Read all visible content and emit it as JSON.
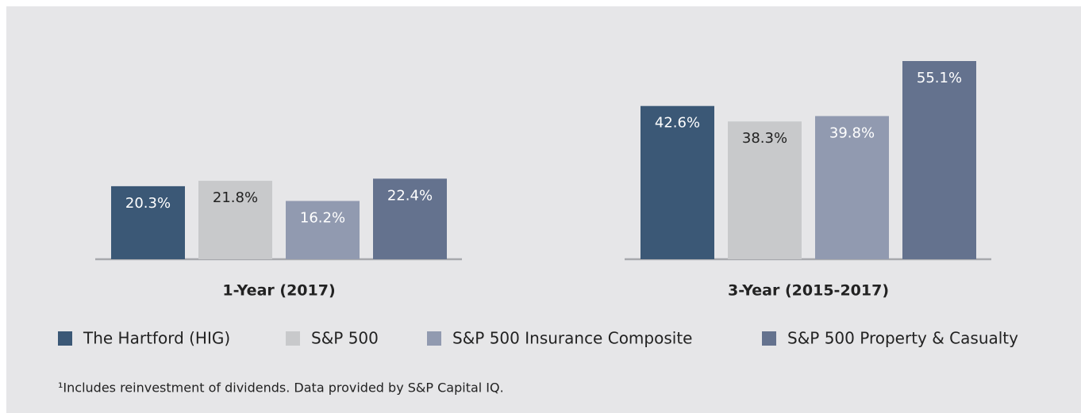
{
  "chart_data": {
    "type": "bar",
    "categories": [
      "1-Year (2017)",
      "3-Year (2015-2017)"
    ],
    "series": [
      {
        "name": "The Hartford (HIG)",
        "color": "#3b5876",
        "values": [
          20.3,
          42.6
        ],
        "value_labels": [
          "20.3%",
          "42.6%"
        ],
        "label_color": "#ffffff"
      },
      {
        "name": "S&P 500",
        "color": "#c8c9cb",
        "values": [
          21.8,
          38.3
        ],
        "value_labels": [
          "21.8%",
          "38.3%"
        ],
        "label_color": "#222222"
      },
      {
        "name": "S&P 500 Insurance Composite",
        "color": "#919ab0",
        "values": [
          16.2,
          39.8
        ],
        "value_labels": [
          "16.2%",
          "39.8%"
        ],
        "label_color": "#ffffff"
      },
      {
        "name": "S&P 500 Property & Casualty",
        "color": "#64728e",
        "values": [
          22.4,
          55.1
        ],
        "value_labels": [
          "22.4%",
          "55.1%"
        ],
        "label_color": "#ffffff"
      }
    ],
    "footnote": "¹Includes reinvestment of dividends. Data provided by S&P Capital IQ."
  }
}
